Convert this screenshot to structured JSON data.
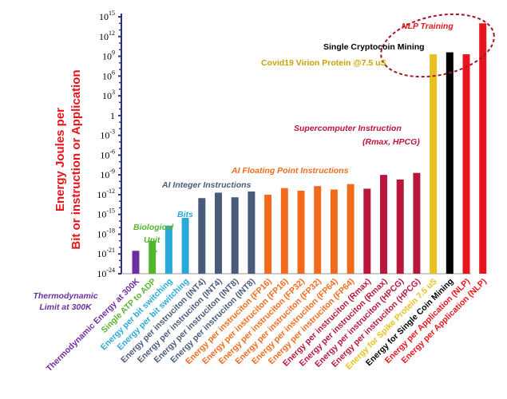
{
  "chart_data": {
    "type": "bar",
    "y_scale": "log10",
    "ylabel_lines": [
      "Energy Joules per",
      "Bit or instruction or Application"
    ],
    "ylim": [
      "1e-24",
      "1e15"
    ],
    "yticks": [
      {
        "base": "10",
        "exp": "15"
      },
      {
        "base": "10",
        "exp": "12"
      },
      {
        "base": "10",
        "exp": "9"
      },
      {
        "base": "10",
        "exp": "6"
      },
      {
        "base": "10",
        "exp": "3"
      },
      {
        "base": "1",
        "exp": ""
      },
      {
        "base": "10",
        "exp": "-3"
      },
      {
        "base": "10",
        "exp": "-6"
      },
      {
        "base": "10",
        "exp": "-9"
      },
      {
        "base": "10",
        "exp": "-12"
      },
      {
        "base": "10",
        "exp": "-15"
      },
      {
        "base": "10",
        "exp": "-18"
      },
      {
        "base": "10",
        "exp": "-21"
      },
      {
        "base": "10",
        "exp": "-24"
      }
    ],
    "categories": [
      {
        "label": "Thermodynamic Energy at 300K",
        "value": "3e-21",
        "color": "#6b2fa0"
      },
      {
        "label": "Single ATP to ADP",
        "value": "1e-19",
        "color": "#54b52e"
      },
      {
        "label": "Energy per bit switching",
        "value": "2e-17",
        "color": "#2aa8d8"
      },
      {
        "label": "Energy per bit switching",
        "value": "3e-16",
        "color": "#2aa8d8"
      },
      {
        "label": "Energy per instruciton (INT4)",
        "value": "3e-13",
        "color": "#4a5a7a"
      },
      {
        "label": "Energy per instruciton (INT4)",
        "value": "2e-12",
        "color": "#4a5a7a"
      },
      {
        "label": "Energy per instruciton (INT8)",
        "value": "4e-13",
        "color": "#4a5a7a"
      },
      {
        "label": "Energy per instruciton (INT8)",
        "value": "3e-12",
        "color": "#4a5a7a"
      },
      {
        "label": "Energy per instruciton (FP16)",
        "value": "1e-12",
        "color": "#f26a1b"
      },
      {
        "label": "Energy per instruciton (FP16)",
        "value": "1e-11",
        "color": "#f26a1b"
      },
      {
        "label": "Energy per instruciton (FP32)",
        "value": "4e-12",
        "color": "#f26a1b"
      },
      {
        "label": "Energy per instruciton (FP32)",
        "value": "2e-11",
        "color": "#f26a1b"
      },
      {
        "label": "Energy per instruciton (FP64)",
        "value": "6e-12",
        "color": "#f26a1b"
      },
      {
        "label": "Energy per instruciton (FP64)",
        "value": "4e-11",
        "color": "#f26a1b"
      },
      {
        "label": "Energy per instruciton (Rmax)",
        "value": "8e-12",
        "color": "#b8163a"
      },
      {
        "label": "Energy per instruciton (Rmax)",
        "value": "1e-9",
        "color": "#b8163a"
      },
      {
        "label": "Energy per instruciton (HPCG)",
        "value": "2e-10",
        "color": "#b8163a"
      },
      {
        "label": "Energy per instruciton (HPCG)",
        "value": "2e-9",
        "color": "#b8163a"
      },
      {
        "label": "Energy for Spike Protein 7.5 uS",
        "value": "2e9",
        "color": "#e8c020"
      },
      {
        "label": "Energy for Single Coin Mining",
        "value": "4e9",
        "color": "#000000"
      },
      {
        "label": "Energy per Application (NLP)",
        "value": "2e9",
        "color": "#e8141b"
      },
      {
        "label": "Energy per Application (NLP)",
        "value": "1e14",
        "color": "#e8141b"
      }
    ],
    "left_note": [
      "Thermodynamic",
      "Limit at 300K"
    ],
    "annotations": [
      {
        "text": "NLP Training",
        "color": "#e8141b",
        "style": "italic"
      },
      {
        "text": "Single Cryptocoin Mining",
        "color": "#000000",
        "style": "plain"
      },
      {
        "text": "Covid19 Virion Protein @7.5 uS",
        "color": "#c9a000",
        "style": "plain"
      },
      {
        "text": "Supercomputer Instruction",
        "color": "#b8163a",
        "style": "italic"
      },
      {
        "text": "(Rmax, HPCG)",
        "color": "#b8163a",
        "style": "italic"
      },
      {
        "text": "AI Floating Point Instructions",
        "color": "#f26a1b",
        "style": "italic"
      },
      {
        "text": "AI Integer Instructions",
        "color": "#4a5a7a",
        "style": "italic"
      },
      {
        "text": "Bits",
        "color": "#2aa8d8",
        "style": "italic"
      },
      {
        "text": "Biological",
        "color": "#54b52e",
        "style": "italic"
      },
      {
        "text": "Unit",
        "color": "#54b52e",
        "style": "italic"
      }
    ],
    "grid": false,
    "legend": "none"
  }
}
